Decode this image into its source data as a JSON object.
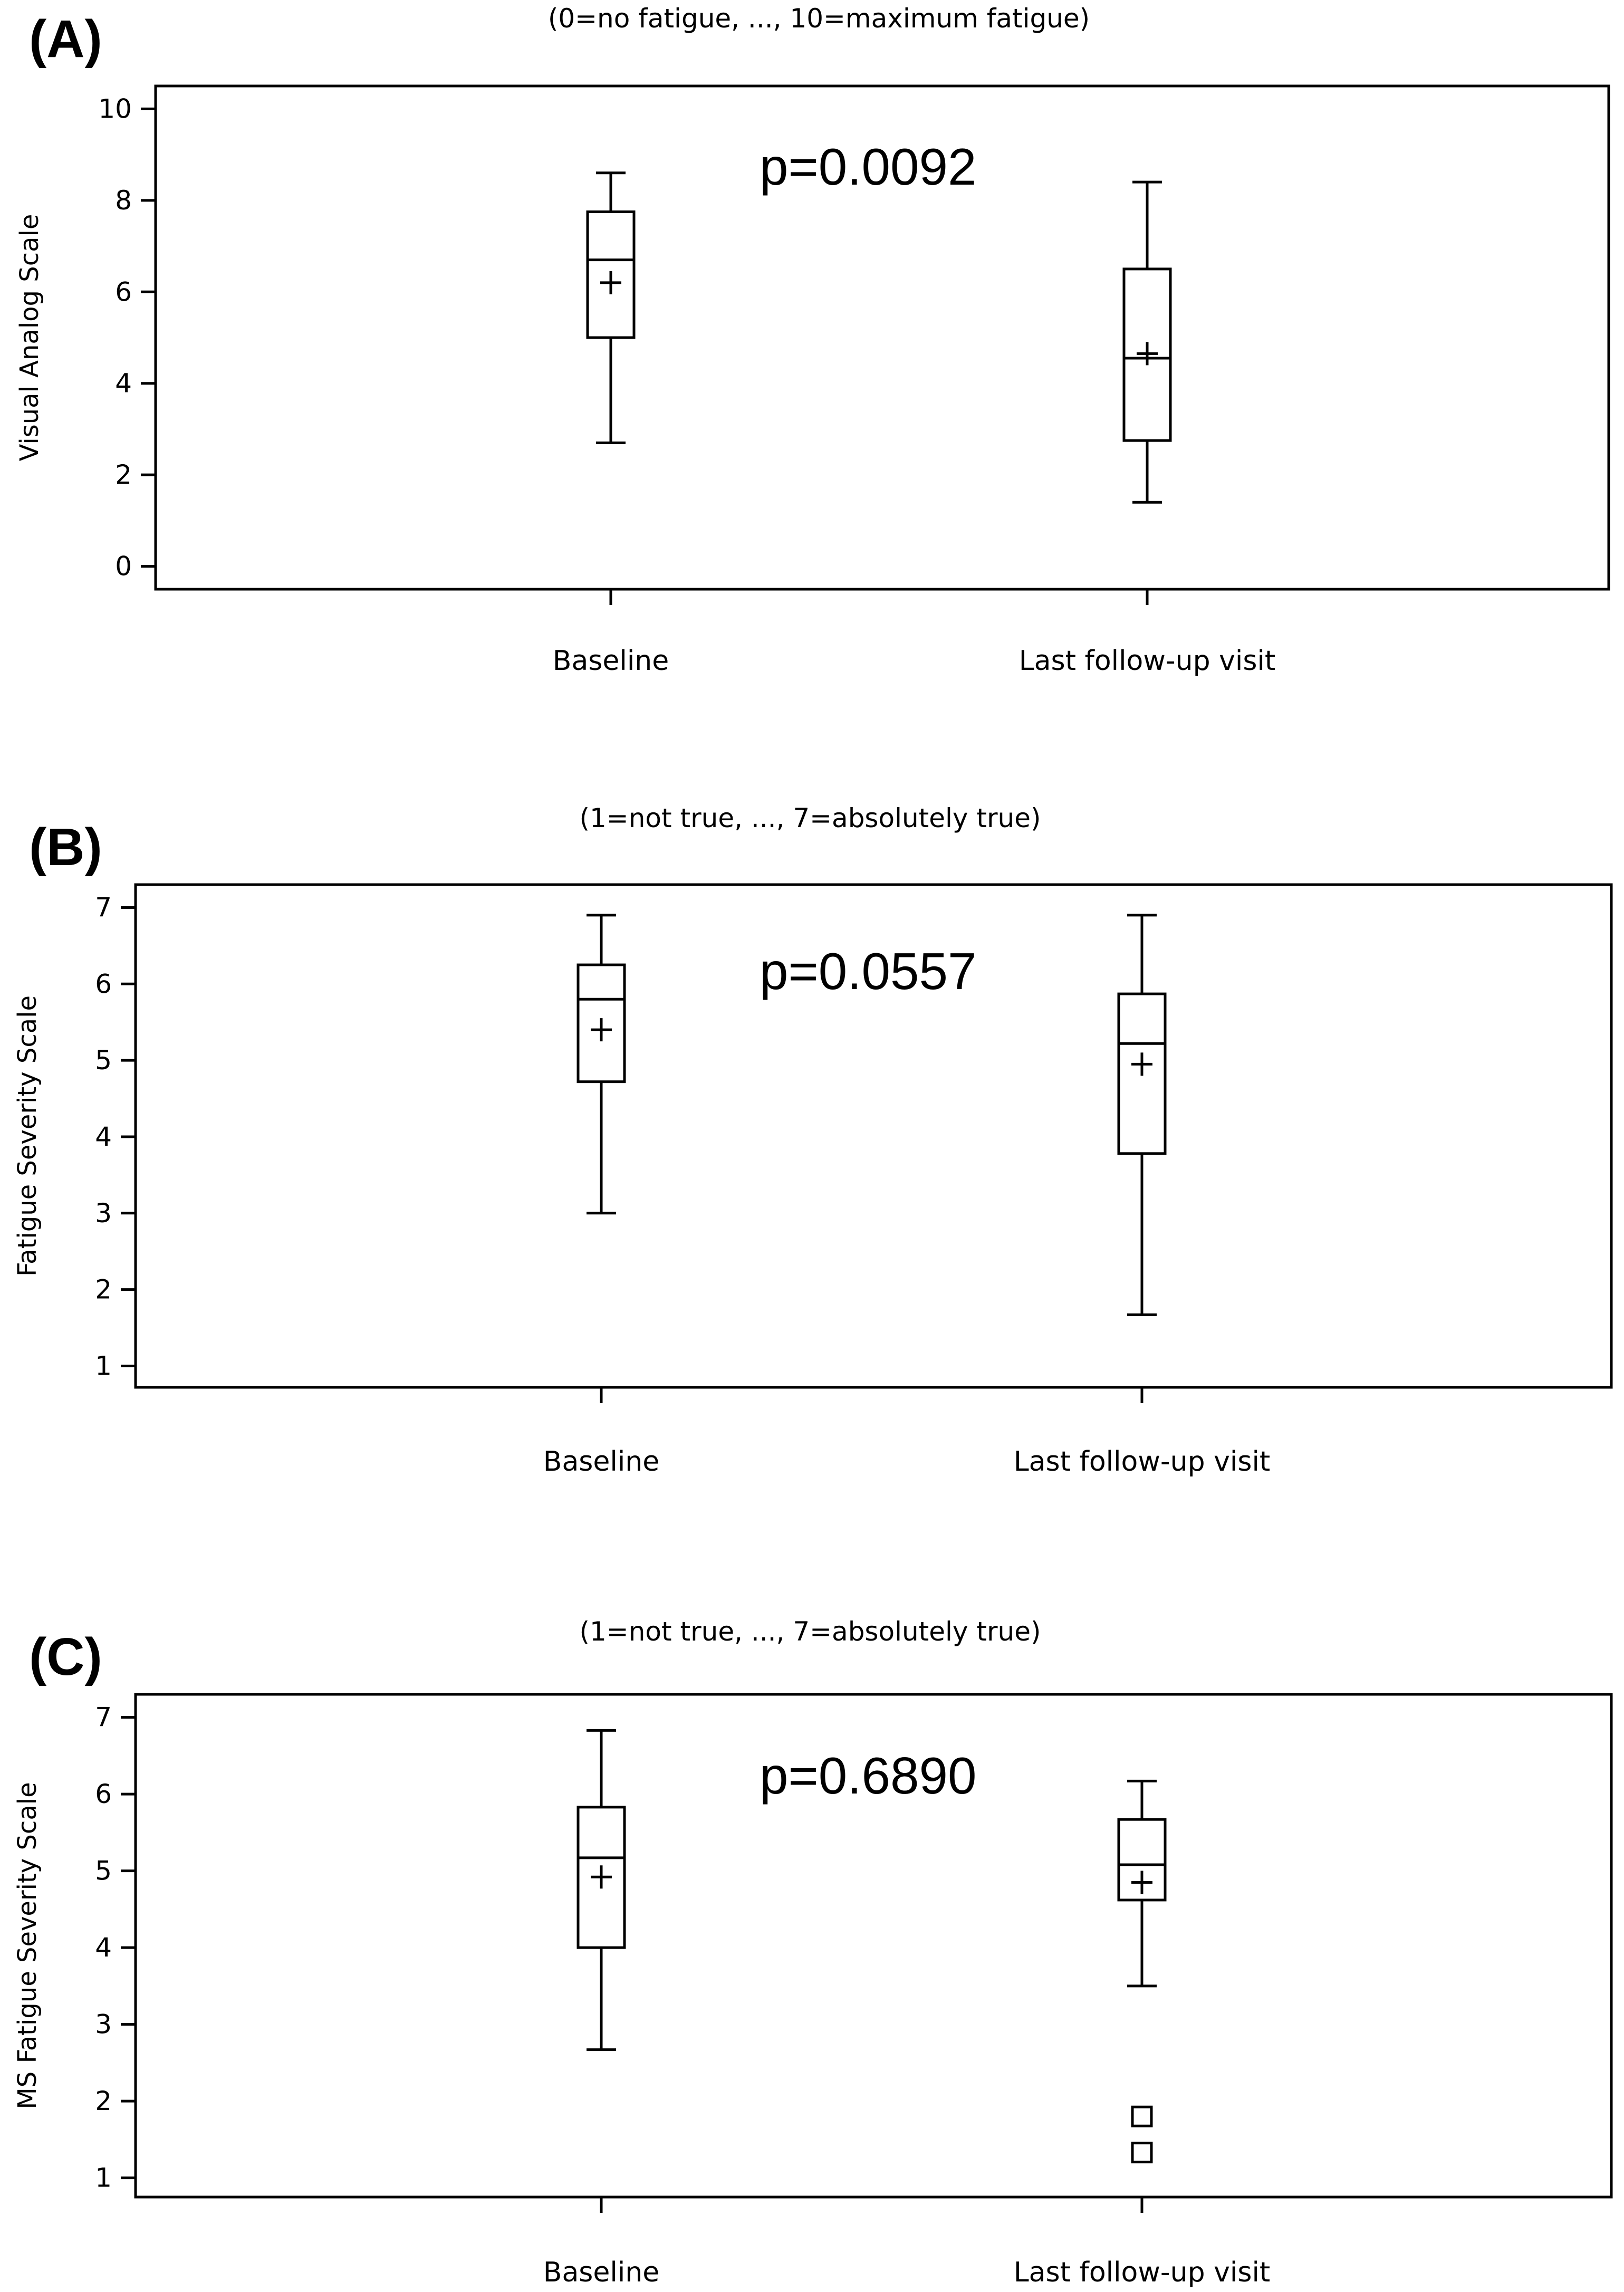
{
  "chart_data": [
    {
      "type": "boxplot",
      "panel_label": "(A)",
      "title": "(0=no fatigue, ..., 10=maximum fatigue)",
      "ylabel": "Visual Analog Scale",
      "xlabel": "",
      "ylim": [
        -0.5,
        10.5
      ],
      "yticks": [
        0,
        2,
        4,
        6,
        8,
        10
      ],
      "categories": [
        "Baseline",
        "Last follow-up visit"
      ],
      "annotation": "p=0.0092",
      "grid": false,
      "series": [
        {
          "name": "Baseline",
          "whisker_low": 2.7,
          "q1": 5.0,
          "median": 6.7,
          "q3": 7.75,
          "whisker_high": 8.6,
          "mean": 6.2,
          "outliers": []
        },
        {
          "name": "Last follow-up visit",
          "whisker_low": 1.4,
          "q1": 2.75,
          "median": 4.55,
          "q3": 6.5,
          "whisker_high": 8.4,
          "mean": 4.65,
          "outliers": []
        }
      ]
    },
    {
      "type": "boxplot",
      "panel_label": "(B)",
      "title": "(1=not true, ..., 7=absolutely true)",
      "ylabel": "Fatigue Severity Scale",
      "xlabel": "",
      "ylim": [
        0.72,
        7.3
      ],
      "yticks": [
        1,
        2,
        3,
        4,
        5,
        6,
        7
      ],
      "categories": [
        "Baseline",
        "Last follow-up visit"
      ],
      "annotation": "p=0.0557",
      "grid": false,
      "series": [
        {
          "name": "Baseline",
          "whisker_low": 3.0,
          "q1": 4.72,
          "median": 5.8,
          "q3": 6.25,
          "whisker_high": 6.9,
          "mean": 5.4,
          "outliers": []
        },
        {
          "name": "Last follow-up visit",
          "whisker_low": 1.67,
          "q1": 3.78,
          "median": 5.22,
          "q3": 5.87,
          "whisker_high": 6.9,
          "mean": 4.95,
          "outliers": []
        }
      ]
    },
    {
      "type": "boxplot",
      "panel_label": "(C)",
      "title": "(1=not true, ..., 7=absolutely true)",
      "ylabel": "MS Fatigue Severity Scale",
      "xlabel": "",
      "ylim": [
        0.75,
        7.3
      ],
      "yticks": [
        1,
        2,
        3,
        4,
        5,
        6,
        7
      ],
      "categories": [
        "Baseline",
        "Last follow-up visit"
      ],
      "annotation": "p=0.6890",
      "grid": false,
      "series": [
        {
          "name": "Baseline",
          "whisker_low": 2.67,
          "q1": 4.0,
          "median": 5.17,
          "q3": 5.83,
          "whisker_high": 6.83,
          "mean": 4.92,
          "outliers": []
        },
        {
          "name": "Last follow-up visit",
          "whisker_low": 3.5,
          "q1": 4.62,
          "median": 5.08,
          "q3": 5.67,
          "whisker_high": 6.17,
          "mean": 4.85,
          "outliers": [
            1.8,
            1.33
          ]
        }
      ]
    }
  ]
}
